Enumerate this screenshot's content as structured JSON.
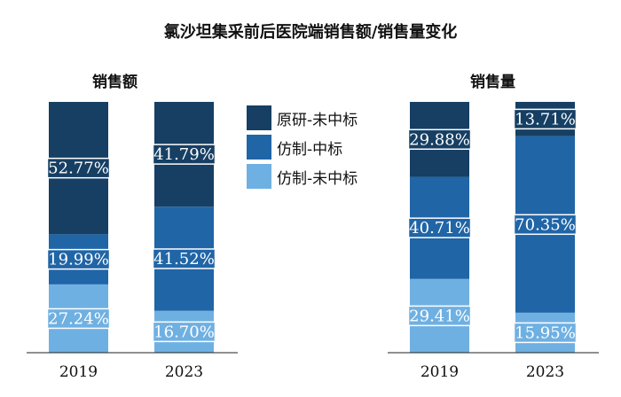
{
  "title": "氯沙坦集采前后医院端销售额/销售量变化",
  "colors": {
    "原研-未中标": "#163f63",
    "仿制-中标": "#2065a6",
    "仿制-未中标": "#6fb0e2"
  },
  "chart_data": [
    {
      "type": "bar",
      "stacked": true,
      "title": "销售额",
      "categories": [
        "2019",
        "2023"
      ],
      "series": [
        {
          "name": "仿制-未中标",
          "values": [
            27.24,
            16.7
          ],
          "labels": [
            "27.24%",
            "16.70%"
          ]
        },
        {
          "name": "仿制-中标",
          "values": [
            19.99,
            41.52
          ],
          "labels": [
            "19.99%",
            "41.52%"
          ]
        },
        {
          "name": "原研-未中标",
          "values": [
            52.77,
            41.79
          ],
          "labels": [
            "52.77%",
            "41.79%"
          ]
        }
      ],
      "ylim": [
        0,
        100
      ]
    },
    {
      "type": "bar",
      "stacked": true,
      "title": "销售量",
      "categories": [
        "2019",
        "2023"
      ],
      "series": [
        {
          "name": "仿制-未中标",
          "values": [
            29.41,
            15.95
          ],
          "labels": [
            "29.41%",
            "15.95%"
          ]
        },
        {
          "name": "仿制-中标",
          "values": [
            40.71,
            70.35
          ],
          "labels": [
            "40.71%",
            "70.35%"
          ]
        },
        {
          "name": "原研-未中标",
          "values": [
            29.88,
            13.71
          ],
          "labels": [
            "29.88%",
            "13.71%"
          ]
        }
      ],
      "ylim": [
        0,
        100
      ]
    }
  ],
  "legend": [
    "原研-未中标",
    "仿制-中标",
    "仿制-未中标"
  ]
}
